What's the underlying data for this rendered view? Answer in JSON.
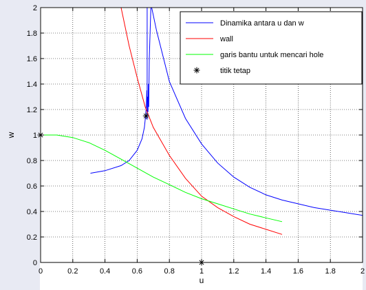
{
  "chart_data": {
    "type": "line",
    "title": "",
    "xlabel": "u",
    "ylabel": "w",
    "xlim": [
      0,
      2
    ],
    "ylim": [
      0,
      2
    ],
    "xticks": [
      "0",
      "0.2",
      "0.4",
      "0.6",
      "0.8",
      "1",
      "1.2",
      "1.4",
      "1.6",
      "1.8",
      "2"
    ],
    "yticks": [
      "0",
      "0.2",
      "0.4",
      "0.6",
      "0.8",
      "1",
      "1.2",
      "1.4",
      "1.6",
      "1.8",
      "2"
    ],
    "grid": true,
    "legend_position": "top-right",
    "series": [
      {
        "name": "Dinamika antara u dan w",
        "color": "#0000ff",
        "segments": [
          [
            [
              0.31,
              0.7
            ],
            [
              0.4,
              0.72
            ],
            [
              0.5,
              0.76
            ],
            [
              0.55,
              0.8
            ],
            [
              0.6,
              0.88
            ],
            [
              0.63,
              0.97
            ],
            [
              0.645,
              1.06
            ],
            [
              0.652,
              1.15
            ],
            [
              0.656,
              1.22
            ],
            [
              0.658,
              1.28
            ],
            [
              0.66,
              1.35
            ]
          ],
          [
            [
              0.662,
              2.0
            ],
            [
              0.662,
              1.12
            ],
            [
              0.665,
              1.3
            ],
            [
              0.667,
              1.18
            ],
            [
              0.67,
              1.4
            ],
            [
              0.672,
              1.22
            ],
            [
              0.675,
              1.6
            ],
            [
              0.685,
              2.0
            ]
          ],
          [
            [
              0.67,
              2.12
            ],
            [
              0.72,
              1.82
            ],
            [
              0.8,
              1.42
            ],
            [
              0.9,
              1.13
            ],
            [
              1.0,
              0.93
            ],
            [
              1.1,
              0.78
            ],
            [
              1.2,
              0.67
            ],
            [
              1.3,
              0.59
            ],
            [
              1.4,
              0.53
            ],
            [
              1.5,
              0.49
            ],
            [
              1.6,
              0.46
            ],
            [
              1.7,
              0.43
            ],
            [
              1.8,
              0.41
            ],
            [
              1.9,
              0.39
            ],
            [
              2.0,
              0.37
            ]
          ]
        ]
      },
      {
        "name": "wall",
        "color": "#ff0000",
        "segments": [
          [
            [
              0.5,
              2.0
            ],
            [
              0.55,
              1.7
            ],
            [
              0.6,
              1.45
            ],
            [
              0.65,
              1.22
            ],
            [
              0.7,
              1.06
            ],
            [
              0.8,
              0.84
            ],
            [
              0.9,
              0.66
            ],
            [
              1.0,
              0.52
            ],
            [
              1.1,
              0.43
            ],
            [
              1.2,
              0.36
            ],
            [
              1.3,
              0.3
            ],
            [
              1.4,
              0.26
            ],
            [
              1.5,
              0.22
            ]
          ]
        ]
      },
      {
        "name": "garis bantu untuk mencari hole",
        "color": "#00ff00",
        "segments": [
          [
            [
              0.0,
              1.0
            ],
            [
              0.1,
              1.0
            ],
            [
              0.2,
              0.98
            ],
            [
              0.3,
              0.94
            ],
            [
              0.4,
              0.88
            ],
            [
              0.5,
              0.81
            ],
            [
              0.6,
              0.74
            ],
            [
              0.7,
              0.67
            ],
            [
              0.8,
              0.61
            ],
            [
              0.9,
              0.55
            ],
            [
              1.0,
              0.5
            ],
            [
              1.1,
              0.46
            ],
            [
              1.2,
              0.42
            ],
            [
              1.3,
              0.38
            ],
            [
              1.4,
              0.35
            ],
            [
              1.5,
              0.32
            ]
          ]
        ]
      },
      {
        "name": "titik tetap",
        "color": "#000000",
        "marker": "asterisk",
        "points": [
          [
            0,
            1
          ],
          [
            0.655,
            1.15
          ],
          [
            1,
            0
          ]
        ]
      }
    ]
  }
}
